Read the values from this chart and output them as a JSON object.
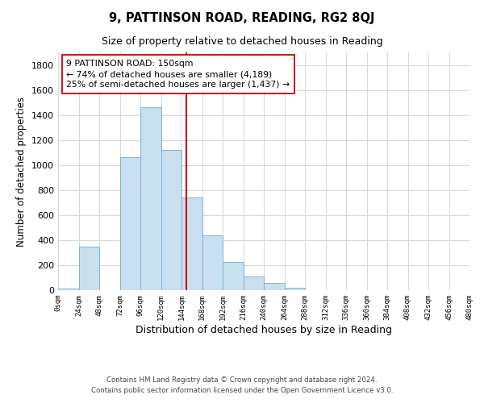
{
  "title": "9, PATTINSON ROAD, READING, RG2 8QJ",
  "subtitle": "Size of property relative to detached houses in Reading",
  "xlabel": "Distribution of detached houses by size in Reading",
  "ylabel": "Number of detached properties",
  "bar_color": "#c8dff0",
  "bar_edge_color": "#7fb3d3",
  "bin_edges": [
    0,
    24,
    48,
    72,
    96,
    120,
    144,
    168,
    192,
    216,
    240,
    264,
    288,
    312,
    336,
    360,
    384,
    408,
    432,
    456,
    480
  ],
  "bar_heights": [
    15,
    350,
    0,
    1060,
    1460,
    1120,
    740,
    440,
    225,
    110,
    55,
    20,
    0,
    0,
    0,
    0,
    0,
    0,
    0,
    0
  ],
  "property_size": 150,
  "vline_color": "#cc0000",
  "annotation_line1": "9 PATTINSON ROAD: 150sqm",
  "annotation_line2": "← 74% of detached houses are smaller (4,189)",
  "annotation_line3": "25% of semi-detached houses are larger (1,437) →",
  "annotation_box_edge": "#cc0000",
  "annotation_box_face": "#ffffff",
  "ylim": [
    0,
    1900
  ],
  "yticks": [
    0,
    200,
    400,
    600,
    800,
    1000,
    1200,
    1400,
    1600,
    1800
  ],
  "xtick_labels": [
    "0sqm",
    "24sqm",
    "48sqm",
    "72sqm",
    "96sqm",
    "120sqm",
    "144sqm",
    "168sqm",
    "192sqm",
    "216sqm",
    "240sqm",
    "264sqm",
    "288sqm",
    "312sqm",
    "336sqm",
    "360sqm",
    "384sqm",
    "408sqm",
    "432sqm",
    "456sqm",
    "480sqm"
  ],
  "footer_line1": "Contains HM Land Registry data © Crown copyright and database right 2024.",
  "footer_line2": "Contains public sector information licensed under the Open Government Licence v3.0.",
  "background_color": "#ffffff",
  "grid_color": "#d0d8e0"
}
